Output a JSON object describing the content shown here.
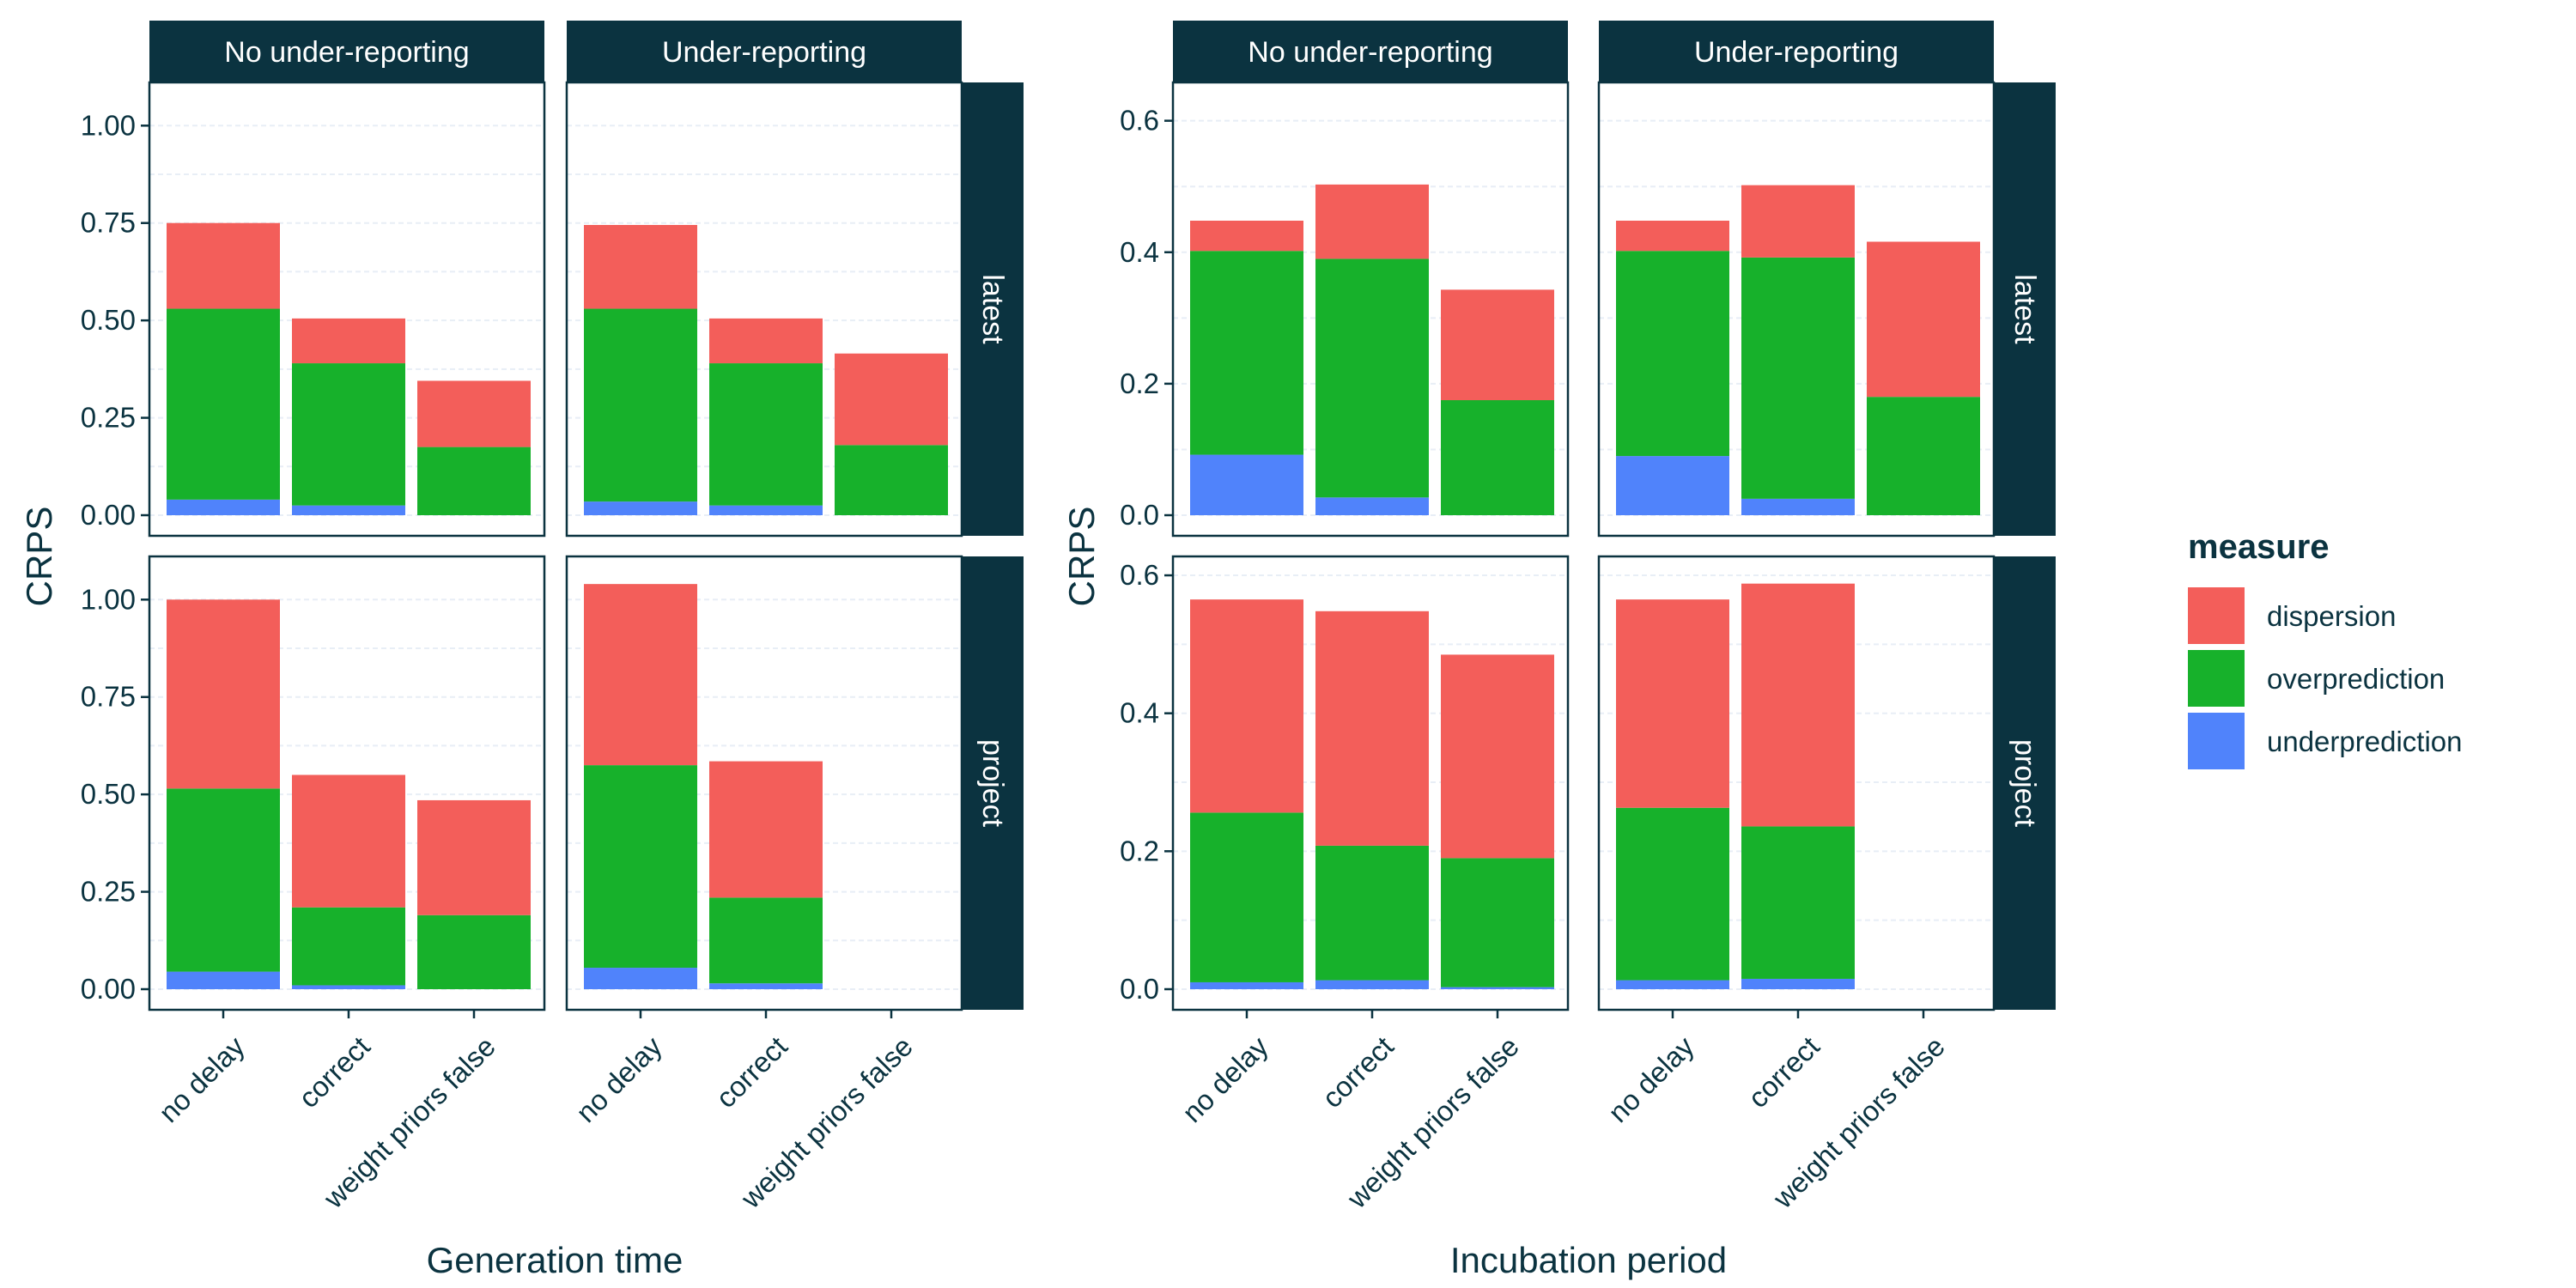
{
  "chart_data": [
    {
      "type": "bar",
      "stacked": true,
      "xlabel": "Generation time",
      "ylabel": "CRPS",
      "categories": [
        "no delay",
        "correct",
        "weight priors false"
      ],
      "columns": [
        "No under-reporting",
        "Under-reporting"
      ],
      "rows": [
        "latest",
        "project"
      ],
      "row_ylims": [
        [
          0,
          1.08
        ],
        [
          0,
          1.08
        ]
      ],
      "row_yticks": [
        [
          0,
          0.25,
          0.5,
          0.75,
          1.0
        ],
        [
          0,
          0.25,
          0.5,
          0.75,
          1.0
        ]
      ],
      "row_ytick_labels": [
        [
          "0.00",
          "0.25",
          "0.50",
          "0.75",
          "1.00"
        ],
        [
          "0.00",
          "0.25",
          "0.50",
          "0.75",
          "1.00"
        ]
      ],
      "grid": true,
      "panels": [
        {
          "column": "No under-reporting",
          "row": "latest",
          "series": [
            {
              "name": "underprediction",
              "values": [
                0.04,
                0.025,
                0.0
              ]
            },
            {
              "name": "overprediction",
              "values": [
                0.49,
                0.365,
                0.175
              ]
            },
            {
              "name": "dispersion",
              "values": [
                0.22,
                0.115,
                0.17
              ]
            }
          ]
        },
        {
          "column": "Under-reporting",
          "row": "latest",
          "series": [
            {
              "name": "underprediction",
              "values": [
                0.035,
                0.025,
                0.0
              ]
            },
            {
              "name": "overprediction",
              "values": [
                0.495,
                0.365,
                0.18
              ]
            },
            {
              "name": "dispersion",
              "values": [
                0.215,
                0.115,
                0.235
              ]
            }
          ]
        },
        {
          "column": "No under-reporting",
          "row": "project",
          "series": [
            {
              "name": "underprediction",
              "values": [
                0.045,
                0.01,
                0.0
              ]
            },
            {
              "name": "overprediction",
              "values": [
                0.47,
                0.2,
                0.19
              ]
            },
            {
              "name": "dispersion",
              "values": [
                0.485,
                0.34,
                0.295
              ]
            }
          ]
        },
        {
          "column": "Under-reporting",
          "row": "project",
          "series": [
            {
              "name": "underprediction",
              "values": [
                0.055,
                0.015,
                null
              ]
            },
            {
              "name": "overprediction",
              "values": [
                0.52,
                0.22,
                null
              ]
            },
            {
              "name": "dispersion",
              "values": [
                0.465,
                0.35,
                null
              ]
            }
          ]
        }
      ]
    },
    {
      "type": "bar",
      "stacked": true,
      "xlabel": "Incubation period",
      "ylabel": "CRPS",
      "categories": [
        "no delay",
        "correct",
        "weight priors false"
      ],
      "columns": [
        "No under-reporting",
        "Under-reporting"
      ],
      "rows": [
        "latest",
        "project"
      ],
      "row_ylims": [
        [
          0,
          0.64
        ],
        [
          0,
          0.61
        ]
      ],
      "row_yticks": [
        [
          0,
          0.2,
          0.4,
          0.6
        ],
        [
          0,
          0.2,
          0.4,
          0.6
        ]
      ],
      "row_ytick_labels": [
        [
          "0.0",
          "0.2",
          "0.4",
          "0.6"
        ],
        [
          "0.0",
          "0.2",
          "0.4",
          "0.6"
        ]
      ],
      "grid": true,
      "panels": [
        {
          "column": "No under-reporting",
          "row": "latest",
          "series": [
            {
              "name": "underprediction",
              "values": [
                0.092,
                0.027,
                0.0
              ]
            },
            {
              "name": "overprediction",
              "values": [
                0.31,
                0.363,
                0.175
              ]
            },
            {
              "name": "dispersion",
              "values": [
                0.046,
                0.113,
                0.168
              ]
            }
          ]
        },
        {
          "column": "Under-reporting",
          "row": "latest",
          "series": [
            {
              "name": "underprediction",
              "values": [
                0.09,
                0.025,
                0.0
              ]
            },
            {
              "name": "overprediction",
              "values": [
                0.312,
                0.367,
                0.18
              ]
            },
            {
              "name": "dispersion",
              "values": [
                0.046,
                0.11,
                0.236
              ]
            }
          ]
        },
        {
          "column": "No under-reporting",
          "row": "project",
          "series": [
            {
              "name": "underprediction",
              "values": [
                0.01,
                0.013,
                0.003
              ]
            },
            {
              "name": "overprediction",
              "values": [
                0.246,
                0.195,
                0.187
              ]
            },
            {
              "name": "dispersion",
              "values": [
                0.309,
                0.34,
                0.295
              ]
            }
          ]
        },
        {
          "column": "Under-reporting",
          "row": "project",
          "series": [
            {
              "name": "underprediction",
              "values": [
                0.013,
                0.015,
                null
              ]
            },
            {
              "name": "overprediction",
              "values": [
                0.25,
                0.221,
                null
              ]
            },
            {
              "name": "dispersion",
              "values": [
                0.302,
                0.352,
                null
              ]
            }
          ]
        }
      ]
    }
  ],
  "legend": {
    "title": "measure",
    "position": "right",
    "items": [
      {
        "label": "dispersion",
        "color": "#F35E5A"
      },
      {
        "label": "overprediction",
        "color": "#17B12B"
      },
      {
        "label": "underprediction",
        "color": "#5083FB"
      }
    ]
  },
  "colors": {
    "strip": "#0B3340",
    "text": "#0B3340",
    "grid": "#E8EEF6",
    "dispersion": "#F35E5A",
    "overprediction": "#17B12B",
    "underprediction": "#5083FB"
  }
}
